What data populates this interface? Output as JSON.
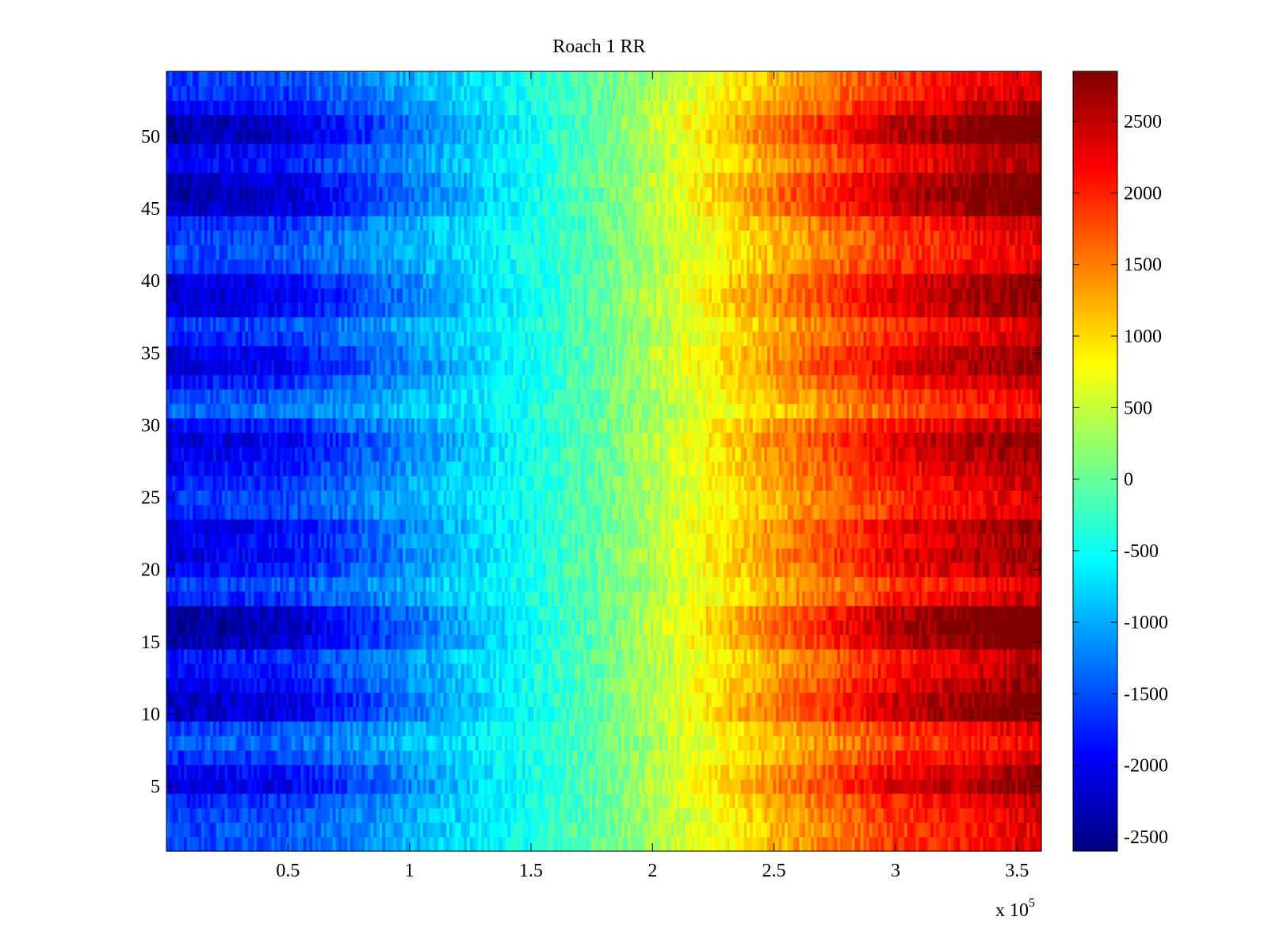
{
  "chart_data": {
    "type": "heatmap",
    "title": "Roach 1 RR",
    "xlabel": "",
    "ylabel": "",
    "x_exponent_base": "x 10",
    "x_exponent_power": "5",
    "xlim": [
      0,
      3.6
    ],
    "ylim": [
      0.5,
      54.5
    ],
    "rows": 54,
    "x_ticks": [
      0.5,
      1,
      1.5,
      2,
      2.5,
      3,
      3.5
    ],
    "x_tick_labels": [
      "0.5",
      "1",
      "1.5",
      "2",
      "2.5",
      "3",
      "3.5"
    ],
    "y_ticks": [
      5,
      10,
      15,
      20,
      25,
      30,
      35,
      40,
      45,
      50
    ],
    "y_tick_labels": [
      "5",
      "10",
      "15",
      "20",
      "25",
      "30",
      "35",
      "40",
      "45",
      "50"
    ],
    "colorbar": {
      "colormap": "jet",
      "clim": [
        -2600,
        2850
      ],
      "ticks": [
        -2500,
        -2000,
        -1500,
        -1000,
        -500,
        0,
        500,
        1000,
        1500,
        2000,
        2500
      ],
      "tick_labels": [
        "-2500",
        "-2000",
        "-1500",
        "-1000",
        "-500",
        "0",
        "500",
        "1000",
        "1500",
        "2000",
        "2500"
      ]
    },
    "x_profile": {
      "x": [
        0,
        0.5,
        1.0,
        1.5,
        1.8,
        2.0,
        2.5,
        3.0,
        3.6
      ],
      "base": [
        -1300,
        -1200,
        -800,
        -400,
        0,
        300,
        1000,
        1600,
        2000
      ],
      "amplitude_factor": [
        1.0,
        0.9,
        0.5,
        0.1,
        0.0,
        0.15,
        0.5,
        0.85,
        1.0
      ]
    },
    "row_amplitude": [
      0.35,
      0.3,
      0.4,
      0.55,
      0.95,
      0.8,
      0.45,
      0.2,
      0.4,
      1.1,
      1.1,
      0.85,
      0.7,
      0.6,
      1.2,
      1.35,
      1.25,
      0.55,
      0.35,
      0.75,
      0.9,
      0.8,
      0.9,
      0.45,
      0.4,
      0.55,
      0.7,
      0.85,
      0.95,
      0.65,
      0.1,
      0.3,
      0.6,
      0.95,
      0.85,
      0.55,
      0.4,
      0.9,
      1.0,
      0.9,
      0.45,
      0.3,
      0.35,
      0.5,
      1.1,
      1.25,
      1.1,
      0.7,
      0.8,
      1.25,
      1.2,
      0.75,
      0.5,
      0.4
    ]
  }
}
